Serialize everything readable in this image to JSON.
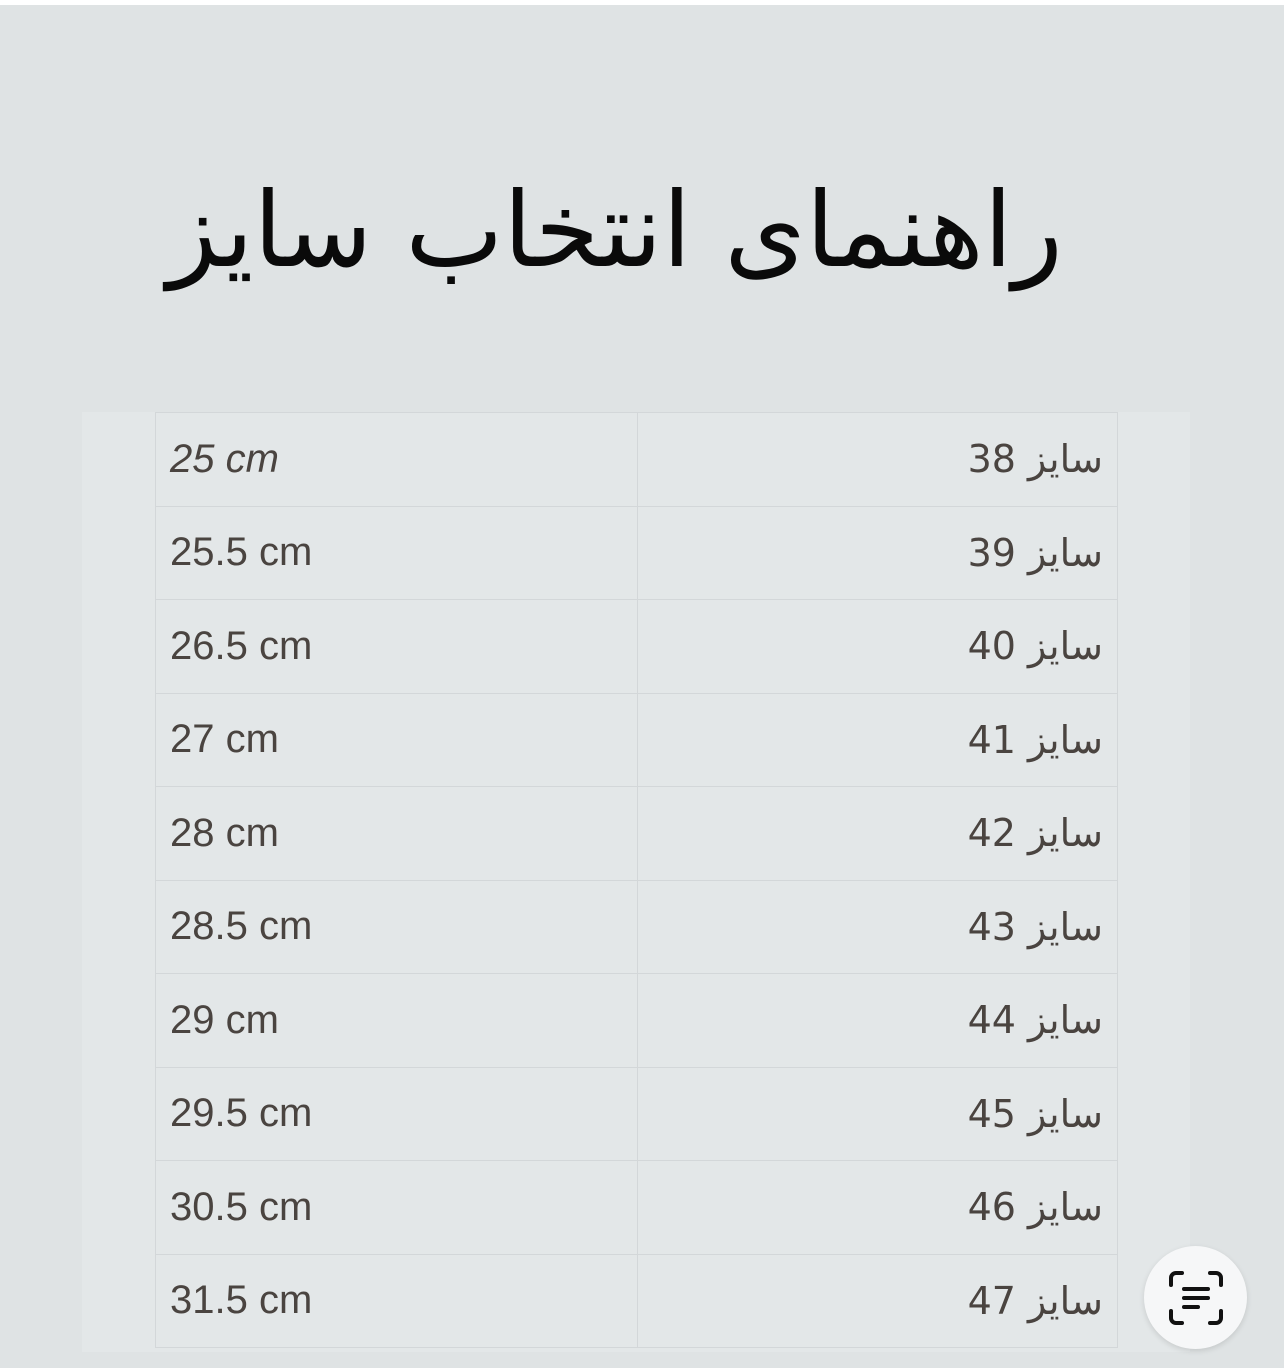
{
  "title": "راهنمای انتخاب سایز",
  "rows": [
    {
      "size": "سایز 38",
      "length": "25 cm"
    },
    {
      "size": "سایز 39",
      "length": "25.5 cm"
    },
    {
      "size": "سایز 40",
      "length": "26.5 cm"
    },
    {
      "size": "سایز 41",
      "length": "27 cm"
    },
    {
      "size": "سایز 42",
      "length": "28 cm"
    },
    {
      "size": "سایز 43",
      "length": "28.5 cm"
    },
    {
      "size": "سایز 44",
      "length": "29 cm"
    },
    {
      "size": "سایز 45",
      "length": "29.5 cm"
    },
    {
      "size": "سایز 46",
      "length": "30.5 cm"
    },
    {
      "size": "سایز 47",
      "length": "31.5 cm"
    }
  ],
  "fab": {
    "icon": "text-scan-icon"
  },
  "colors": {
    "background": "#dfe3e4",
    "text": "#4a4440"
  }
}
